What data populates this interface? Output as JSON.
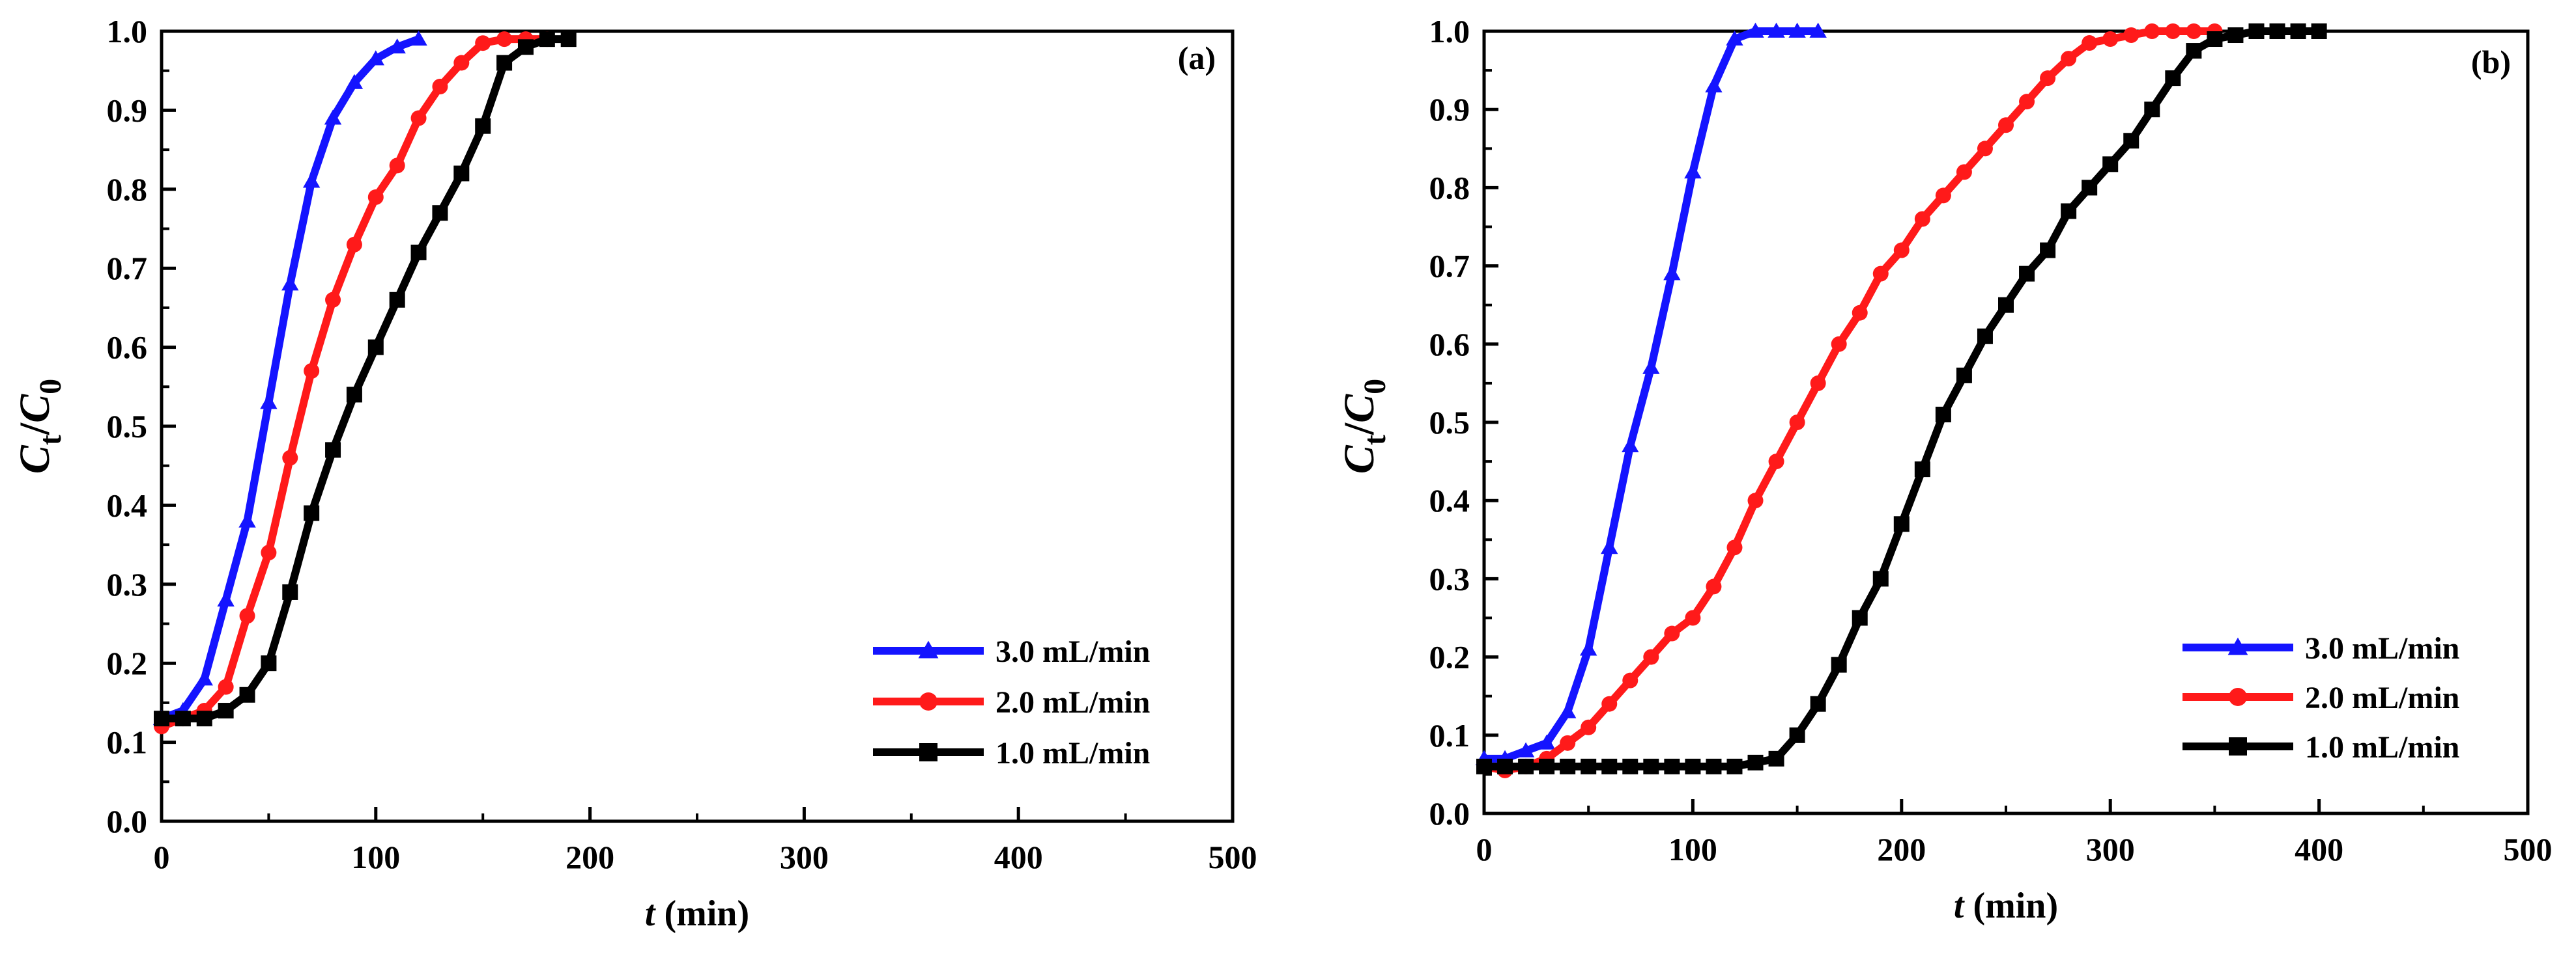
{
  "figure": {
    "description_free": true
  },
  "chart_data": [
    {
      "type": "line",
      "panel_label": "(a)",
      "xlabel": "t (min)",
      "xlabel_var": "t",
      "xlabel_unit": "(min)",
      "ylabel": "Ct/C0",
      "ylabel_main": "C",
      "ylabel_sub1": "t",
      "ylabel_slash": "/",
      "ylabel_sub2": "0",
      "xlim": [
        0,
        500
      ],
      "ylim": [
        0,
        1.0
      ],
      "xticks": [
        0,
        100,
        200,
        300,
        400,
        500
      ],
      "yticks": [
        0.0,
        0.1,
        0.2,
        0.3,
        0.4,
        0.5,
        0.6,
        0.7,
        0.8,
        0.9,
        1.0
      ],
      "legend_position": "bottom-right",
      "series": [
        {
          "name": "3.0 mL/min",
          "color": "#1414ff",
          "marker": "triangle",
          "x": [
            0,
            10,
            20,
            30,
            40,
            50,
            60,
            70,
            80,
            90,
            100,
            110,
            120
          ],
          "y": [
            0.13,
            0.14,
            0.18,
            0.28,
            0.38,
            0.53,
            0.68,
            0.81,
            0.89,
            0.935,
            0.965,
            0.98,
            0.99
          ]
        },
        {
          "name": "2.0 mL/min",
          "color": "#ff1a1a",
          "marker": "circle",
          "x": [
            0,
            10,
            20,
            30,
            40,
            50,
            60,
            70,
            80,
            90,
            100,
            110,
            120,
            130,
            140,
            150,
            160,
            170,
            180
          ],
          "y": [
            0.12,
            0.13,
            0.14,
            0.17,
            0.26,
            0.34,
            0.46,
            0.57,
            0.66,
            0.73,
            0.79,
            0.83,
            0.89,
            0.93,
            0.96,
            0.985,
            0.99,
            0.99,
            0.99
          ]
        },
        {
          "name": "1.0 mL/min",
          "color": "#000000",
          "marker": "square",
          "x": [
            0,
            10,
            20,
            30,
            40,
            50,
            60,
            70,
            80,
            90,
            100,
            110,
            120,
            130,
            140,
            150,
            160,
            170,
            180,
            190
          ],
          "y": [
            0.13,
            0.13,
            0.13,
            0.14,
            0.16,
            0.2,
            0.29,
            0.39,
            0.47,
            0.54,
            0.6,
            0.66,
            0.72,
            0.77,
            0.82,
            0.88,
            0.96,
            0.98,
            0.99,
            0.99
          ]
        }
      ]
    },
    {
      "type": "line",
      "panel_label": "(b)",
      "xlabel": "t (min)",
      "xlabel_var": "t",
      "xlabel_unit": "(min)",
      "ylabel": "Ct/C0",
      "ylabel_main": "C",
      "ylabel_sub1": "t",
      "ylabel_slash": "/",
      "ylabel_sub2": "0",
      "xlim": [
        0,
        500
      ],
      "ylim": [
        0,
        1.0
      ],
      "xticks": [
        0,
        100,
        200,
        300,
        400,
        500
      ],
      "yticks": [
        0.0,
        0.1,
        0.2,
        0.3,
        0.4,
        0.5,
        0.6,
        0.7,
        0.8,
        0.9,
        1.0
      ],
      "legend_position": "bottom-right",
      "series": [
        {
          "name": "3.0 mL/min",
          "color": "#1414ff",
          "marker": "triangle",
          "x": [
            0,
            10,
            20,
            30,
            40,
            50,
            60,
            70,
            80,
            90,
            100,
            110,
            120,
            130,
            140,
            150,
            160
          ],
          "y": [
            0.07,
            0.07,
            0.08,
            0.09,
            0.13,
            0.21,
            0.34,
            0.47,
            0.57,
            0.69,
            0.82,
            0.93,
            0.99,
            1.0,
            1.0,
            1.0,
            1.0
          ]
        },
        {
          "name": "2.0 mL/min",
          "color": "#ff1a1a",
          "marker": "circle",
          "x": [
            0,
            10,
            20,
            30,
            40,
            50,
            60,
            70,
            80,
            90,
            100,
            110,
            120,
            130,
            140,
            150,
            160,
            170,
            180,
            190,
            200,
            210,
            220,
            230,
            240,
            250,
            260,
            270,
            280,
            290,
            300,
            310,
            320,
            330,
            340,
            350
          ],
          "y": [
            0.06,
            0.055,
            0.06,
            0.07,
            0.09,
            0.11,
            0.14,
            0.17,
            0.2,
            0.23,
            0.25,
            0.29,
            0.34,
            0.4,
            0.45,
            0.5,
            0.55,
            0.6,
            0.64,
            0.69,
            0.72,
            0.76,
            0.79,
            0.82,
            0.85,
            0.88,
            0.91,
            0.94,
            0.965,
            0.985,
            0.99,
            0.995,
            1.0,
            1.0,
            1.0,
            1.0
          ]
        },
        {
          "name": "1.0 mL/min",
          "color": "#000000",
          "marker": "square",
          "x": [
            0,
            10,
            20,
            30,
            40,
            50,
            60,
            70,
            80,
            90,
            100,
            110,
            120,
            130,
            140,
            150,
            160,
            170,
            180,
            190,
            200,
            210,
            220,
            230,
            240,
            250,
            260,
            270,
            280,
            290,
            300,
            310,
            320,
            330,
            340,
            350,
            360,
            370,
            380,
            390,
            400
          ],
          "y": [
            0.06,
            0.06,
            0.06,
            0.06,
            0.06,
            0.06,
            0.06,
            0.06,
            0.06,
            0.06,
            0.06,
            0.06,
            0.06,
            0.065,
            0.07,
            0.1,
            0.14,
            0.19,
            0.25,
            0.3,
            0.37,
            0.44,
            0.51,
            0.56,
            0.61,
            0.65,
            0.69,
            0.72,
            0.77,
            0.8,
            0.83,
            0.86,
            0.9,
            0.94,
            0.975,
            0.99,
            0.995,
            1.0,
            1.0,
            1.0,
            1.0
          ]
        }
      ]
    }
  ]
}
